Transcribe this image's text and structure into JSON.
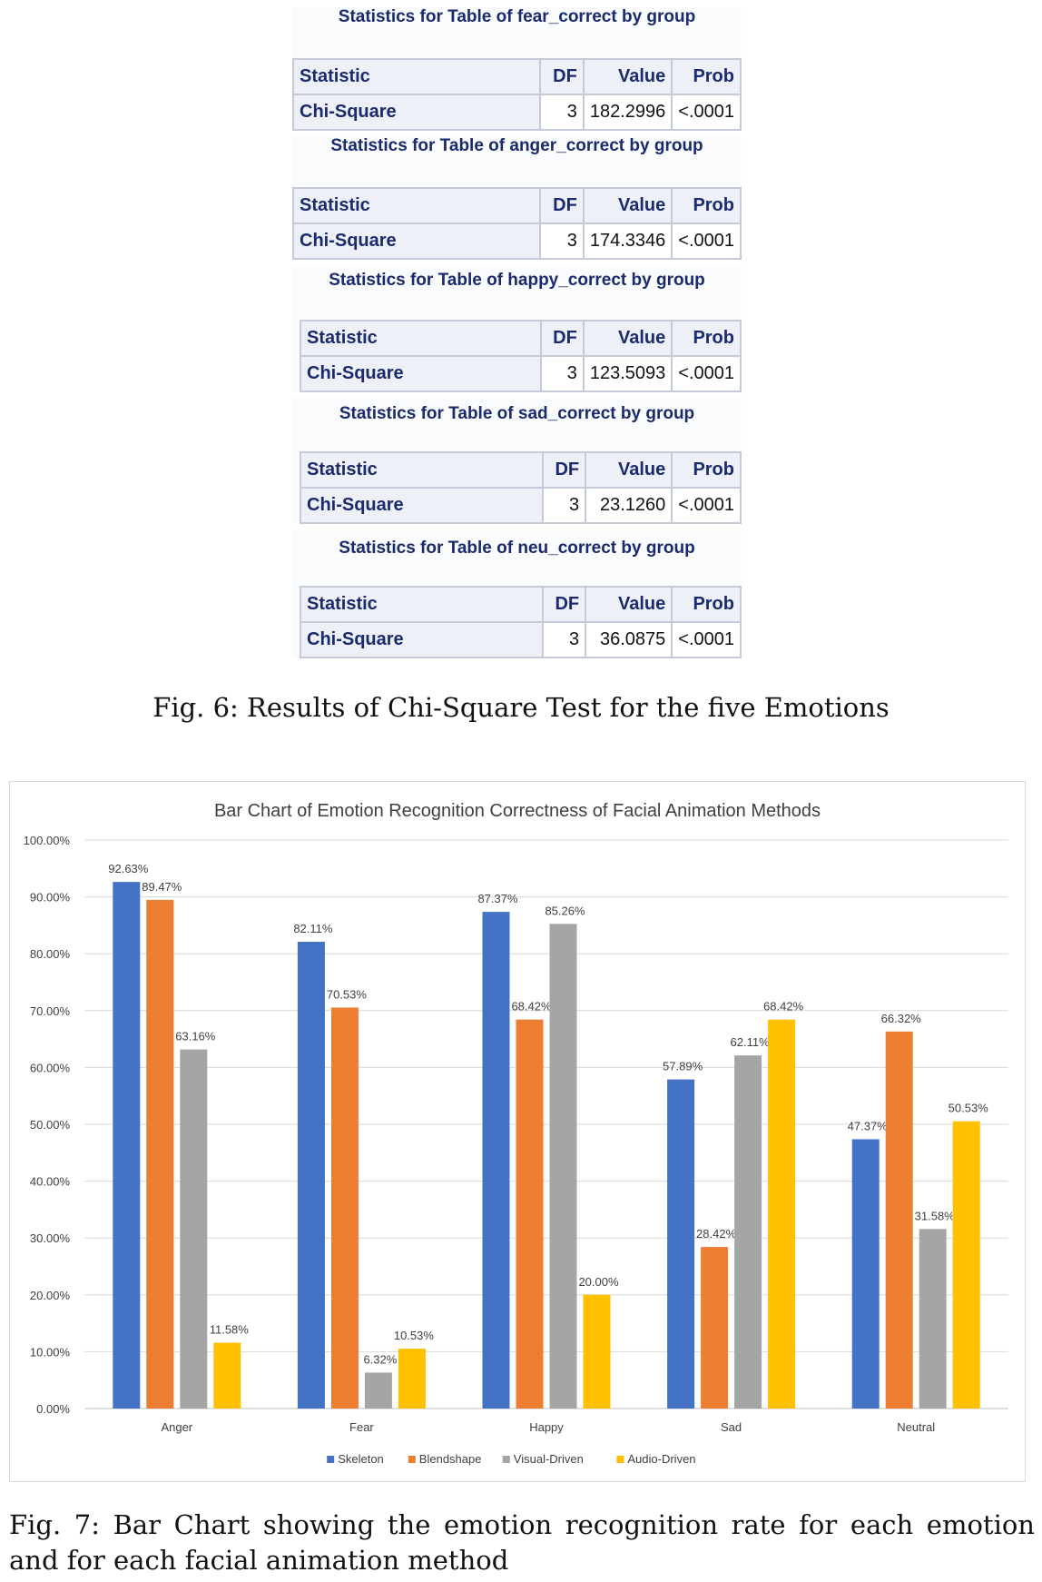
{
  "figure6": {
    "tables": [
      {
        "title": "Statistics for Table of fear_correct by group",
        "headers": [
          "Statistic",
          "DF",
          "Value",
          "Prob"
        ],
        "row": {
          "statistic": "Chi-Square",
          "df": "3",
          "value": "182.2996",
          "prob": "<.0001"
        }
      },
      {
        "title": "Statistics for Table of anger_correct by group",
        "headers": [
          "Statistic",
          "DF",
          "Value",
          "Prob"
        ],
        "row": {
          "statistic": "Chi-Square",
          "df": "3",
          "value": "174.3346",
          "prob": "<.0001"
        }
      },
      {
        "title": "Statistics for Table of happy_correct by group",
        "headers": [
          "Statistic",
          "DF",
          "Value",
          "Prob"
        ],
        "row": {
          "statistic": "Chi-Square",
          "df": "3",
          "value": "123.5093",
          "prob": "<.0001"
        }
      },
      {
        "title": "Statistics for Table of sad_correct by group",
        "headers": [
          "Statistic",
          "DF",
          "Value",
          "Prob"
        ],
        "row": {
          "statistic": "Chi-Square",
          "df": "3",
          "value": "23.1260",
          "prob": "<.0001"
        }
      },
      {
        "title": "Statistics for Table of neu_correct by group",
        "headers": [
          "Statistic",
          "DF",
          "Value",
          "Prob"
        ],
        "row": {
          "statistic": "Chi-Square",
          "df": "3",
          "value": "36.0875",
          "prob": "<.0001"
        }
      }
    ],
    "caption": "Fig. 6: Results of Chi-Square Test for the five Emotions"
  },
  "figure7": {
    "caption": "Fig. 7: Bar Chart showing the emotion recognition rate for each emotion and for each facial animation method"
  },
  "chart_data": {
    "type": "bar",
    "title": "Bar Chart of Emotion Recognition Correctness of Facial Animation Methods",
    "categories": [
      "Anger",
      "Fear",
      "Happy",
      "Sad",
      "Neutral"
    ],
    "series": [
      {
        "name": "Skeleton",
        "color": "#4472c4",
        "values": [
          92.63,
          82.11,
          87.37,
          57.89,
          47.37
        ],
        "labels": [
          "92.63%",
          "82.11%",
          "87.37%",
          "57.89%",
          "47.37%"
        ]
      },
      {
        "name": "Blendshape",
        "color": "#ed7d31",
        "values": [
          89.47,
          70.53,
          68.42,
          28.42,
          66.32
        ],
        "labels": [
          "89.47%",
          "70.53%",
          "68.42%",
          "28.42%",
          "66.32%"
        ]
      },
      {
        "name": "Visual-Driven",
        "color": "#a5a5a5",
        "values": [
          63.16,
          6.32,
          85.26,
          62.11,
          31.58
        ],
        "labels": [
          "63.16%",
          "6.32%",
          "85.26%",
          "62.11%",
          "31.58%"
        ]
      },
      {
        "name": "Audio-Driven",
        "color": "#ffc000",
        "values": [
          11.58,
          10.53,
          20.0,
          68.42,
          50.53
        ],
        "labels": [
          "11.58%",
          "10.53%",
          "20.00%",
          "68.42%",
          "50.53%"
        ]
      }
    ],
    "ylim": [
      0,
      100
    ],
    "yticks": [
      "0.00%",
      "10.00%",
      "20.00%",
      "30.00%",
      "40.00%",
      "50.00%",
      "60.00%",
      "70.00%",
      "80.00%",
      "90.00%",
      "100.00%"
    ],
    "xlabel": "",
    "ylabel": "",
    "grid": true,
    "legend": "bottom-center",
    "gridColor": "#d9d9d9",
    "textColor": "#404040"
  }
}
